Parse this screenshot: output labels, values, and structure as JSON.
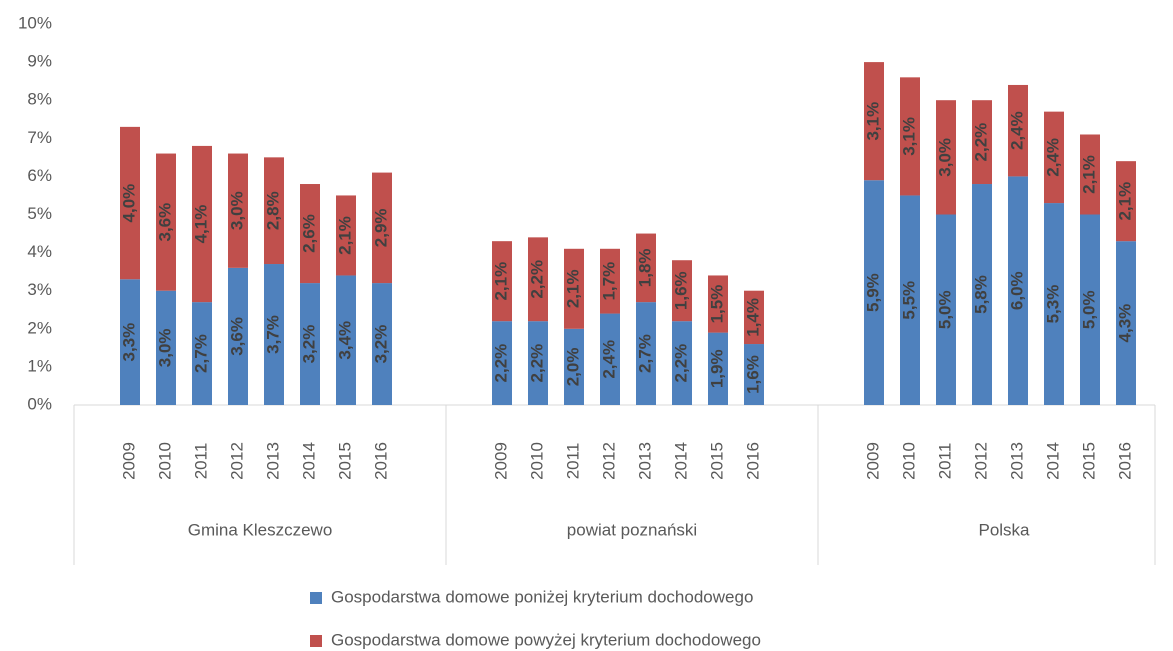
{
  "chart_data": {
    "type": "stacked-bar",
    "groups": [
      {
        "name": "Gmina Kleszczewo",
        "categories": [
          "2009",
          "2010",
          "2011",
          "2012",
          "2013",
          "2014",
          "2015",
          "2016"
        ]
      },
      {
        "name": "powiat poznański",
        "categories": [
          "2009",
          "2010",
          "2011",
          "2012",
          "2013",
          "2014",
          "2015",
          "2016"
        ]
      },
      {
        "name": "Polska",
        "categories": [
          "2009",
          "2010",
          "2011",
          "2012",
          "2013",
          "2014",
          "2015",
          "2016"
        ]
      }
    ],
    "series": [
      {
        "name": "Gospodarstwa domowe poniżej kryterium dochodowego",
        "color": "#4f81bd",
        "values": [
          [
            3.3,
            3.0,
            2.7,
            3.6,
            3.7,
            3.2,
            3.4,
            3.2
          ],
          [
            2.2,
            2.2,
            2.0,
            2.4,
            2.7,
            2.2,
            1.9,
            1.6
          ],
          [
            5.9,
            5.5,
            5.0,
            5.8,
            6.0,
            5.3,
            5.0,
            4.3
          ]
        ],
        "value_labels": [
          [
            "3,3%",
            "3,0%",
            "2,7%",
            "3,6%",
            "3,7%",
            "3,2%",
            "3,4%",
            "3,2%"
          ],
          [
            "2,2%",
            "2,2%",
            "2,0%",
            "2,4%",
            "2,7%",
            "2,2%",
            "1,9%",
            "1,6%"
          ],
          [
            "5,9%",
            "5,5%",
            "5,0%",
            "5,8%",
            "6,0%",
            "5,3%",
            "5,0%",
            "4,3%"
          ]
        ]
      },
      {
        "name": "Gospodarstwa domowe powyżej kryterium dochodowego",
        "color": "#c0504d",
        "values": [
          [
            4.0,
            3.6,
            4.1,
            3.0,
            2.8,
            2.6,
            2.1,
            2.9
          ],
          [
            2.1,
            2.2,
            2.1,
            1.7,
            1.8,
            1.6,
            1.5,
            1.4
          ],
          [
            3.1,
            3.1,
            3.0,
            2.2,
            2.4,
            2.4,
            2.1,
            2.1
          ]
        ],
        "value_labels": [
          [
            "4,0%",
            "3,6%",
            "4,1%",
            "3,0%",
            "2,8%",
            "2,6%",
            "2,1%",
            "2,9%"
          ],
          [
            "2,1%",
            "2,2%",
            "2,1%",
            "1,7%",
            "1,8%",
            "1,6%",
            "1,5%",
            "1,4%"
          ],
          [
            "3,1%",
            "3,1%",
            "3,0%",
            "2,2%",
            "2,4%",
            "2,4%",
            "2,1%",
            "2,1%"
          ]
        ]
      }
    ],
    "ylim": [
      0,
      10
    ],
    "yticks": [
      {
        "value": 0,
        "label": "0%"
      },
      {
        "value": 1,
        "label": "1%"
      },
      {
        "value": 2,
        "label": "2%"
      },
      {
        "value": 3,
        "label": "3%"
      },
      {
        "value": 4,
        "label": "4%"
      },
      {
        "value": 5,
        "label": "5%"
      },
      {
        "value": 6,
        "label": "6%"
      },
      {
        "value": 7,
        "label": "7%"
      },
      {
        "value": 8,
        "label": "8%"
      },
      {
        "value": 9,
        "label": "9%"
      },
      {
        "value": 10,
        "label": "10%"
      }
    ],
    "legend": "bottom"
  }
}
